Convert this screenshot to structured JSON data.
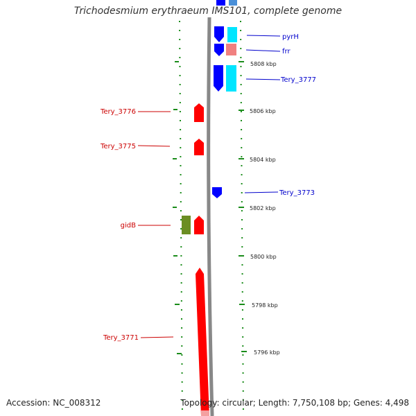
{
  "title": "Trichodesmium erythraeum IMS101, complete genome",
  "accession": "Accession: NC_008312",
  "stats": "Topology: circular; Length: 7,750,108 bp; Genes: 4,498",
  "colors": {
    "forward_gene": "#ff0000",
    "reverse_gene": "#0000ff",
    "rna_cyan": "#00e5ff",
    "rna_pink": "#f08080",
    "olive": "#6b8e23",
    "marker_green": "#1a8c1a",
    "backbone": "#888888"
  },
  "coordinates": [
    {
      "label": "5808 kbp"
    },
    {
      "label": "5806 kbp"
    },
    {
      "label": "5804 kbp"
    },
    {
      "label": "5802 kbp"
    },
    {
      "label": "5800 kbp"
    },
    {
      "label": "5798 kbp"
    },
    {
      "label": "5796 kbp"
    }
  ],
  "labels_right": [
    {
      "text": "pyrH"
    },
    {
      "text": "frr"
    },
    {
      "text": "Tery_3777"
    },
    {
      "text": "Tery_3773"
    }
  ],
  "labels_left": [
    {
      "text": "Tery_3776"
    },
    {
      "text": "Tery_3775"
    },
    {
      "text": "gidB"
    },
    {
      "text": "Tery_3771"
    }
  ]
}
